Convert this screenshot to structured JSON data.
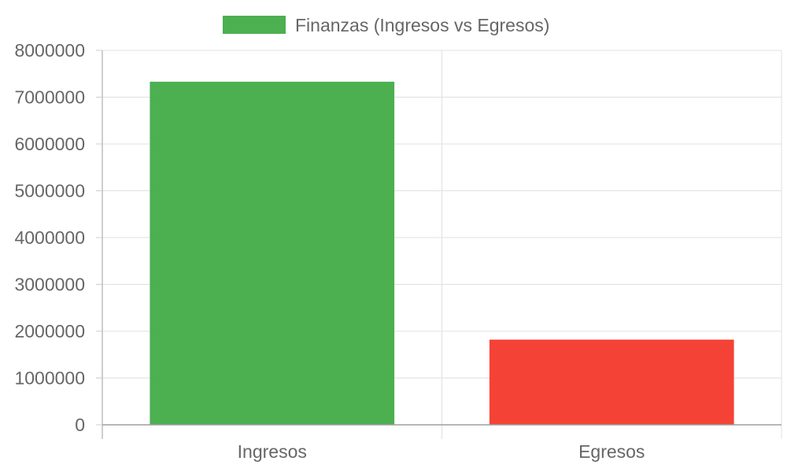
{
  "chart_data": {
    "type": "bar",
    "categories": [
      "Ingresos",
      "Egresos"
    ],
    "values": [
      7330000,
      1820000
    ],
    "bar_colors": [
      "#4caf50",
      "#f44336"
    ],
    "legend": {
      "label": "Finanzas (Ingresos vs Egresos)",
      "color": "#4caf50",
      "position": "top-center"
    },
    "ylim": [
      0,
      8000000
    ],
    "yticks": [
      "0",
      "1000000",
      "2000000",
      "3000000",
      "4000000",
      "5000000",
      "6000000",
      "7000000",
      "8000000"
    ],
    "grid": true,
    "title": "",
    "xlabel": "",
    "ylabel": ""
  }
}
